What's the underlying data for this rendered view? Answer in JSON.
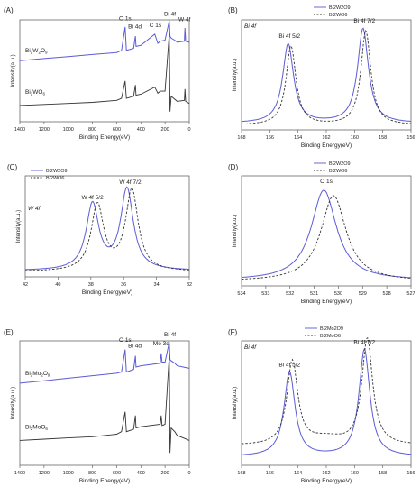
{
  "colors": {
    "blue": "#5b5bd6",
    "black": "#333333",
    "axis": "#666666"
  },
  "chart_data": [
    {
      "id": "A",
      "type": "line",
      "panel_label": "(A)",
      "xlabel": "Binding Energy(eV)",
      "ylabel": "Intensity(a.u.)",
      "xlim": [
        1400,
        0
      ],
      "xticks": [
        1400,
        1200,
        1000,
        800,
        600,
        400,
        200,
        0
      ],
      "series": [
        {
          "name": "Bi2W2O9",
          "label_main": "Bi",
          "sub1": "2",
          "mid": "W",
          "sub2": "2",
          "end": "O",
          "sub3": "9",
          "style": "blue",
          "x": [
            1400,
            1200,
            1000,
            800,
            600,
            560,
            530,
            520,
            460,
            445,
            440,
            400,
            285,
            260,
            240,
            200,
            165,
            159,
            150,
            120,
            100,
            40,
            36,
            30,
            0
          ],
          "y": [
            0.6,
            0.62,
            0.64,
            0.66,
            0.68,
            0.7,
            0.93,
            0.7,
            0.72,
            0.84,
            0.74,
            0.75,
            0.86,
            0.77,
            0.79,
            0.8,
            0.99,
            0.84,
            0.82,
            0.8,
            0.78,
            0.79,
            0.92,
            0.79,
            0.78
          ]
        },
        {
          "name": "Bi2WO6",
          "label_main": "Bi",
          "sub1": "2",
          "mid": "WO",
          "sub2": "6",
          "end": "",
          "sub3": "",
          "style": "black",
          "x": [
            1400,
            1200,
            1000,
            800,
            600,
            560,
            530,
            520,
            460,
            445,
            440,
            400,
            285,
            260,
            240,
            200,
            165,
            159,
            150,
            120,
            100,
            40,
            36,
            30,
            0
          ],
          "y": [
            0.16,
            0.17,
            0.18,
            0.19,
            0.21,
            0.23,
            0.4,
            0.23,
            0.25,
            0.36,
            0.26,
            0.27,
            0.34,
            0.28,
            0.3,
            0.3,
            0.86,
            0.1,
            0.25,
            0.22,
            0.2,
            0.21,
            0.32,
            0.2,
            0.18
          ]
        }
      ],
      "annotations": [
        {
          "text": "O 1s",
          "x": 530,
          "y": 0.98,
          "italic_part": "s"
        },
        {
          "text": "Bi 4d",
          "x": 450,
          "y": 0.9
        },
        {
          "text": "C 1s",
          "x": 280,
          "y": 0.91
        },
        {
          "text": "Bi 4f",
          "x": 160,
          "y": 1.02
        },
        {
          "text": "W 4f",
          "x": 40,
          "y": 0.97
        }
      ]
    },
    {
      "id": "B",
      "type": "line",
      "panel_label": "(B)",
      "xlabel": "Binding Energy(eV)",
      "ylabel": "Intensity(a.u.)",
      "xlim": [
        168,
        156
      ],
      "xticks": [
        168,
        166,
        164,
        162,
        160,
        158,
        156
      ],
      "corner_label": "Bi 4f",
      "series": [
        {
          "name": "Bi2W2O9",
          "style": "blue",
          "peaks": [
            {
              "c": 164.7,
              "w": 0.55,
              "h": 0.72
            },
            {
              "c": 159.4,
              "w": 0.55,
              "h": 0.86
            }
          ],
          "base": 0.06
        },
        {
          "name": "Bi2WO6",
          "style": "black-dash",
          "peaks": [
            {
              "c": 164.5,
              "w": 0.5,
              "h": 0.72
            },
            {
              "c": 159.2,
              "w": 0.5,
              "h": 0.86
            }
          ],
          "base": 0.04
        }
      ],
      "annotations": [
        {
          "text": "Bi 4f 5/2",
          "x": 164.6,
          "y": 0.82
        },
        {
          "text": "Bi 4f 7/2",
          "x": 159.3,
          "y": 0.96
        }
      ]
    },
    {
      "id": "C",
      "type": "line",
      "panel_label": "(C)",
      "xlabel": "Binding Energy(eV)",
      "ylabel": "Intensity(a.u.)",
      "xlim": [
        42,
        32
      ],
      "xticks": [
        42,
        40,
        38,
        36,
        34,
        32
      ],
      "corner_label": "W 4f",
      "series": [
        {
          "name": "Bi2W2O9",
          "style": "blue",
          "peaks": [
            {
              "c": 37.9,
              "w": 0.55,
              "h": 0.65
            },
            {
              "c": 35.8,
              "w": 0.55,
              "h": 0.8
            }
          ],
          "base": 0.06
        },
        {
          "name": "Bi2WO6",
          "style": "black-dash",
          "peaks": [
            {
              "c": 37.6,
              "w": 0.55,
              "h": 0.65
            },
            {
              "c": 35.5,
              "w": 0.55,
              "h": 0.8
            }
          ],
          "base": 0.05
        }
      ],
      "annotations": [
        {
          "text": "W 4f 5/2",
          "x": 37.9,
          "y": 0.75
        },
        {
          "text": "W 4f 7/2",
          "x": 35.6,
          "y": 0.9
        }
      ]
    },
    {
      "id": "D",
      "type": "line",
      "panel_label": "(D)",
      "xlabel": "Binding Energy(eV)",
      "ylabel": "Intensity(a.u.)",
      "xlim": [
        534,
        527
      ],
      "xticks": [
        534,
        533,
        532,
        531,
        530,
        529,
        528,
        527
      ],
      "series": [
        {
          "name": "Bi2W2O9",
          "style": "blue",
          "peaks": [
            {
              "c": 530.6,
              "w": 0.75,
              "h": 0.82
            }
          ],
          "base": 0.05
        },
        {
          "name": "Bi2WO6",
          "style": "black-dash",
          "peaks": [
            {
              "c": 530.2,
              "w": 0.75,
              "h": 0.78
            }
          ],
          "base": 0.04
        }
      ],
      "annotations": [
        {
          "text": "O 1s",
          "x": 530.5,
          "y": 0.92
        }
      ]
    },
    {
      "id": "E",
      "type": "line",
      "panel_label": "(E)",
      "xlabel": "Binding Energy(eV)",
      "ylabel": "Intensity(a.u.)",
      "xlim": [
        1400,
        0
      ],
      "xticks": [
        1400,
        1200,
        1000,
        800,
        600,
        400,
        200,
        0
      ],
      "series": [
        {
          "name": "Bi2Mo2O9",
          "label_main": "Bi",
          "sub1": "2",
          "mid": "Mo",
          "sub2": "2",
          "end": "O",
          "sub3": "9",
          "style": "blue",
          "x": [
            1400,
            1200,
            1000,
            800,
            600,
            560,
            530,
            520,
            460,
            445,
            440,
            400,
            240,
            232,
            225,
            200,
            165,
            159,
            150,
            120,
            100,
            50,
            0
          ],
          "y": [
            0.66,
            0.68,
            0.7,
            0.72,
            0.74,
            0.75,
            0.93,
            0.75,
            0.77,
            0.88,
            0.79,
            0.8,
            0.82,
            0.9,
            0.83,
            0.83,
            0.99,
            0.85,
            0.84,
            0.82,
            0.8,
            0.79,
            0.78
          ]
        },
        {
          "name": "Bi2MoO6",
          "label_main": "Bi",
          "sub1": "2",
          "mid": "MoO",
          "sub2": "6",
          "end": "",
          "sub3": "",
          "style": "black",
          "x": [
            1400,
            1200,
            1000,
            800,
            600,
            560,
            530,
            520,
            460,
            445,
            440,
            400,
            240,
            232,
            225,
            200,
            165,
            159,
            150,
            120,
            100,
            50,
            0
          ],
          "y": [
            0.2,
            0.21,
            0.22,
            0.23,
            0.25,
            0.27,
            0.43,
            0.27,
            0.29,
            0.4,
            0.3,
            0.31,
            0.33,
            0.4,
            0.32,
            0.33,
            0.88,
            0.1,
            0.3,
            0.27,
            0.24,
            0.22,
            0.2
          ]
        }
      ],
      "annotations": [
        {
          "text": "O 1s",
          "x": 530,
          "y": 0.98
        },
        {
          "text": "Bi 4d",
          "x": 450,
          "y": 0.93
        },
        {
          "text": "Mo 3d",
          "x": 232,
          "y": 0.95
        },
        {
          "text": "Bi 4f",
          "x": 160,
          "y": 1.02
        }
      ]
    },
    {
      "id": "F",
      "type": "line",
      "panel_label": "(F)",
      "xlabel": "Binding Energy(eV)",
      "ylabel": "Intensity(a.u.)",
      "xlim": [
        168,
        156
      ],
      "xticks": [
        168,
        166,
        164,
        162,
        160,
        158,
        156
      ],
      "corner_label": "Bi 4f",
      "series": [
        {
          "name": "Bi2Mo2O9",
          "style": "blue",
          "peaks": [
            {
              "c": 164.6,
              "w": 0.55,
              "h": 0.68
            },
            {
              "c": 159.3,
              "w": 0.55,
              "h": 0.86
            }
          ],
          "base": 0.07
        },
        {
          "name": "Bi2MoO6",
          "style": "black-dash",
          "peaks": [
            {
              "c": 164.4,
              "w": 0.55,
              "h": 0.68
            },
            {
              "c": 159.1,
              "w": 0.55,
              "h": 0.86
            }
          ],
          "base": 0.16,
          "hump": {
            "c": 162.0,
            "w": 1.5,
            "h": 0.05
          }
        }
      ],
      "annotations": [
        {
          "text": "Bi 4f 5/2",
          "x": 164.6,
          "y": 0.78
        },
        {
          "text": "Bi 4f 7/2",
          "x": 159.3,
          "y": 0.96
        }
      ]
    }
  ]
}
